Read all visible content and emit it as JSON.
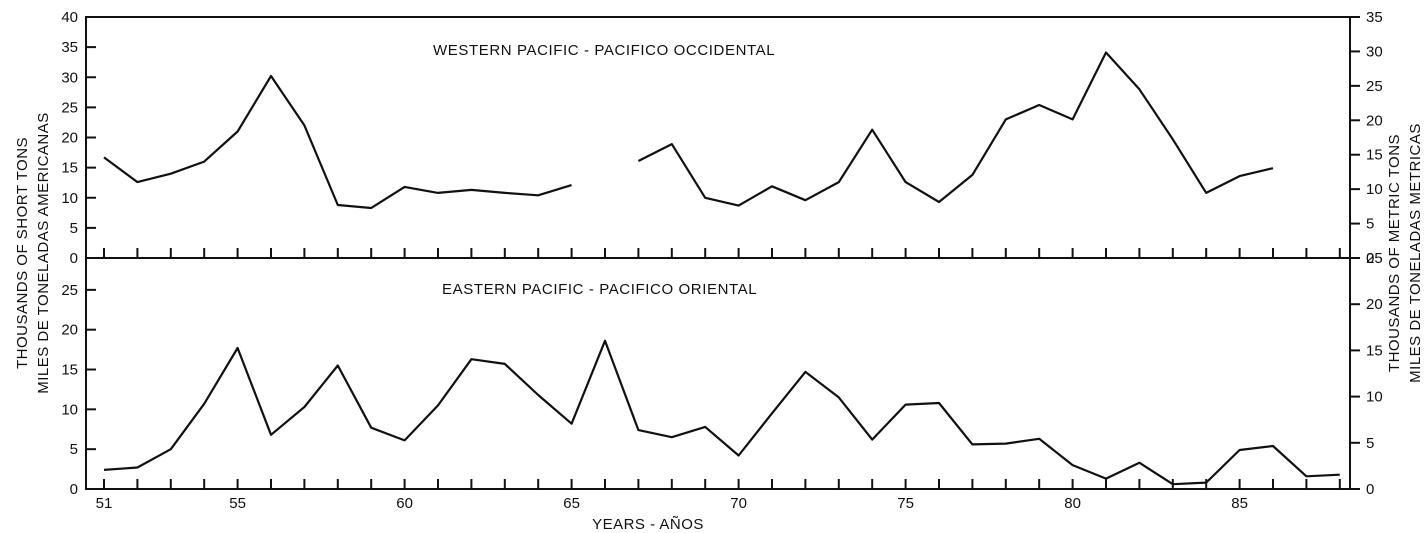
{
  "chart_data": {
    "type": "line",
    "xlabel": "YEARS - AÑOS",
    "ylabel_left": [
      "THOUSANDS OF SHORT TONS",
      "MILES DE TONELADAS AMERICANAS"
    ],
    "ylabel_right": [
      "THOUSANDS OF METRIC TONS",
      "MILES DE TONELADAS METRICAS"
    ],
    "x_ticks": [
      "51",
      "55",
      "60",
      "65",
      "70",
      "75",
      "80",
      "85"
    ],
    "xlim": [
      51,
      88
    ],
    "panels": [
      {
        "title": "WESTERN PACIFIC - PACIFICO OCCIDENTAL",
        "ylim_left": [
          0,
          40
        ],
        "ylim_right": [
          0,
          35
        ],
        "yticks_left": [
          "0",
          "5",
          "10",
          "15",
          "20",
          "25",
          "30",
          "35",
          "40"
        ],
        "yticks_right": [
          "0",
          "5",
          "10",
          "15",
          "20",
          "25",
          "30",
          "35"
        ],
        "series": [
          {
            "x": [
              51,
              52,
              53,
              54,
              55,
              56,
              57,
              58,
              59,
              60,
              61,
              62,
              63,
              64,
              65,
              66,
              67,
              68,
              69,
              70,
              71,
              72,
              73,
              74,
              75,
              76,
              77,
              78,
              79,
              80,
              81,
              82,
              83,
              84,
              85,
              86
            ],
            "values": [
              16.7,
              12.6,
              14.0,
              16.0,
              21.0,
              30.2,
              22.0,
              8.8,
              8.3,
              11.8,
              10.8,
              11.3,
              10.8,
              10.4,
              12.1,
              null,
              16.1,
              18.9,
              10.0,
              8.7,
              11.9,
              9.6,
              12.6,
              21.3,
              12.6,
              9.3,
              13.8,
              23.0,
              25.4,
              23.0,
              34.1,
              28.0,
              19.7,
              10.8,
              13.6,
              14.9
            ]
          }
        ]
      },
      {
        "title": "EASTERN PACIFIC - PACIFICO ORIENTAL",
        "ylim_left": [
          0,
          29
        ],
        "ylim_right": [
          0,
          25
        ],
        "yticks_left": [
          "0",
          "5",
          "10",
          "15",
          "20",
          "25"
        ],
        "yticks_right": [
          "0",
          "5",
          "10",
          "15",
          "20",
          "25"
        ],
        "series": [
          {
            "x": [
              51,
              52,
              53,
              54,
              55,
              56,
              57,
              58,
              59,
              60,
              61,
              62,
              63,
              64,
              65,
              66,
              67,
              68,
              69,
              70,
              71,
              72,
              73,
              74,
              75,
              76,
              77,
              78,
              79,
              80,
              81,
              82,
              83,
              84,
              85,
              86,
              87,
              88
            ],
            "values": [
              2.4,
              2.7,
              5.0,
              10.7,
              17.7,
              6.8,
              10.3,
              15.5,
              7.7,
              6.1,
              10.5,
              16.3,
              15.7,
              11.8,
              8.2,
              18.6,
              7.4,
              6.5,
              7.8,
              4.2,
              9.5,
              14.7,
              11.5,
              6.2,
              10.6,
              10.8,
              5.6,
              5.7,
              6.3,
              3.0,
              1.3,
              3.3,
              0.6,
              0.8,
              4.9,
              5.4,
              1.6,
              1.8
            ]
          }
        ]
      }
    ]
  }
}
